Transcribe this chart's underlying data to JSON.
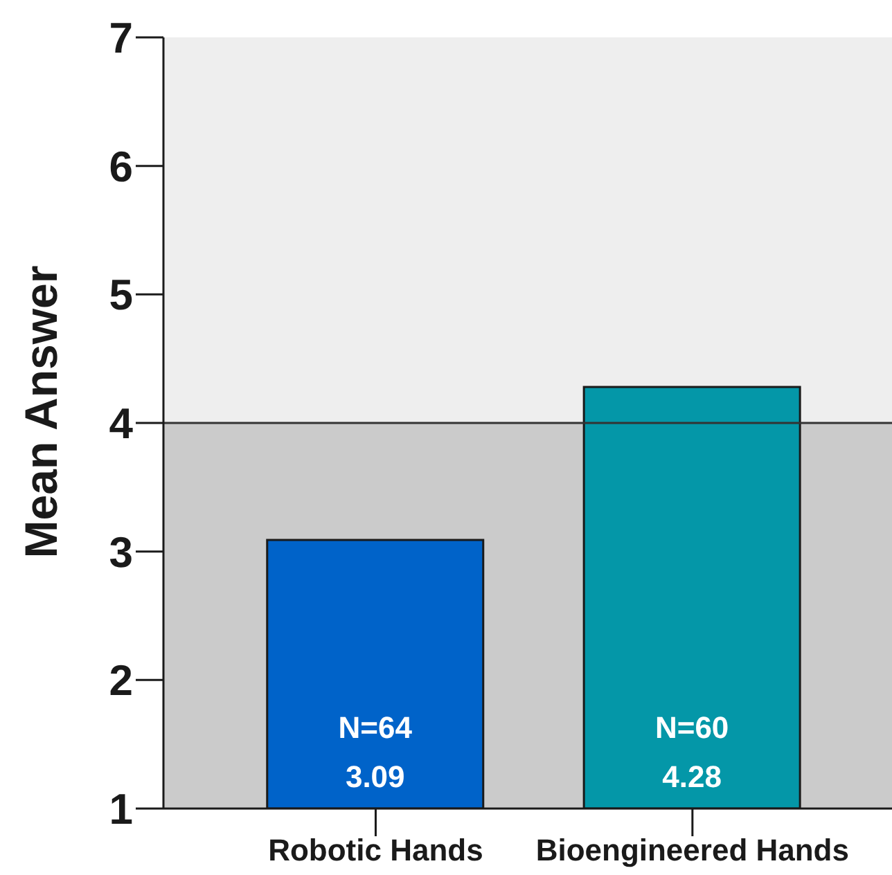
{
  "chart_data": {
    "type": "bar",
    "ylabel": "Mean Answer",
    "categories": [
      "Robotic Hands",
      "Bioengineered Hands"
    ],
    "values": [
      3.09,
      4.28
    ],
    "colors": [
      "#0063c9",
      "#0497a8"
    ],
    "ylim": [
      1,
      7
    ],
    "yticks": [
      1,
      2,
      3,
      4,
      5,
      6,
      7
    ],
    "data_labels": true,
    "annotations": [
      "N=64",
      "N=60"
    ],
    "bands": [
      {
        "axis": "y",
        "from": 1,
        "to": 4,
        "color": "#cbcbcb"
      },
      {
        "axis": "y",
        "from": 4,
        "to": 7,
        "color": "#eeeeee"
      }
    ],
    "ref_lines": [
      {
        "axis": "y",
        "value": 4,
        "color": "#333333"
      }
    ]
  }
}
